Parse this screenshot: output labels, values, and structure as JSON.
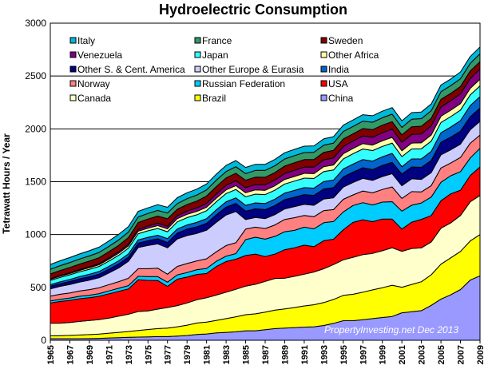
{
  "chart_data": {
    "type": "area",
    "title": "Hydroelectric Consumption",
    "ylabel": "Tetrawatt Hours / Year",
    "xlabel": "",
    "ylim": [
      0,
      3000
    ],
    "yticks": [
      "0",
      "500",
      "1000",
      "1500",
      "2000",
      "2500",
      "3000"
    ],
    "x": [
      1965,
      1966,
      1967,
      1968,
      1969,
      1970,
      1971,
      1972,
      1973,
      1974,
      1975,
      1976,
      1977,
      1978,
      1979,
      1980,
      1981,
      1982,
      1983,
      1984,
      1985,
      1986,
      1987,
      1988,
      1989,
      1990,
      1991,
      1992,
      1993,
      1994,
      1995,
      1996,
      1997,
      1998,
      1999,
      2000,
      2001,
      2002,
      2003,
      2004,
      2005,
      2006,
      2007,
      2008,
      2009
    ],
    "xticks": [
      "1965",
      "1967",
      "1969",
      "1971",
      "1973",
      "1975",
      "1977",
      "1979",
      "1981",
      "1983",
      "1985",
      "1987",
      "1989",
      "1991",
      "1993",
      "1995",
      "1997",
      "1999",
      "2001",
      "2003",
      "2005",
      "2007",
      "2009"
    ],
    "grid": true,
    "stacked": true,
    "annotation": "PropertyInvesting.net  Dec 2013",
    "series": [
      {
        "name": "China",
        "color": "#9999ff",
        "values": [
          15,
          15,
          15,
          15,
          16,
          18,
          22,
          25,
          28,
          30,
          32,
          35,
          35,
          40,
          45,
          55,
          60,
          70,
          75,
          80,
          90,
          90,
          100,
          110,
          115,
          120,
          125,
          128,
          140,
          160,
          185,
          185,
          195,
          205,
          215,
          225,
          260,
          270,
          280,
          330,
          390,
          430,
          480,
          570,
          610
        ]
      },
      {
        "name": "Brazil",
        "color": "#ffff00",
        "values": [
          27,
          29,
          31,
          35,
          38,
          40,
          45,
          50,
          55,
          62,
          70,
          75,
          80,
          88,
          98,
          108,
          112,
          118,
          130,
          142,
          152,
          160,
          167,
          175,
          182,
          190,
          200,
          208,
          217,
          226,
          240,
          250,
          260,
          272,
          282,
          296,
          242,
          258,
          274,
          290,
          330,
          350,
          360,
          370,
          390
        ]
      },
      {
        "name": "Canada",
        "color": "#ffffcc",
        "values": [
          120,
          118,
          122,
          128,
          133,
          138,
          143,
          153,
          163,
          180,
          175,
          185,
          195,
          200,
          210,
          220,
          230,
          240,
          250,
          260,
          270,
          280,
          290,
          300,
          290,
          295,
          300,
          310,
          320,
          330,
          336,
          350,
          355,
          345,
          350,
          355,
          340,
          340,
          320,
          310,
          340,
          330,
          340,
          370,
          370
        ]
      },
      {
        "name": "USA",
        "color": "#ff0000",
        "values": [
          190,
          205,
          210,
          215,
          215,
          220,
          230,
          235,
          240,
          300,
          290,
          270,
          200,
          250,
          245,
          240,
          230,
          270,
          290,
          285,
          290,
          285,
          235,
          230,
          270,
          270,
          275,
          240,
          265,
          240,
          285,
          330,
          330,
          300,
          300,
          270,
          210,
          250,
          270,
          250,
          260,
          275,
          240,
          250,
          270
        ]
      },
      {
        "name": "Russian Federation",
        "color": "#00ccff",
        "values": [
          20,
          21,
          22,
          23,
          24,
          25,
          27,
          29,
          31,
          33,
          35,
          37,
          39,
          41,
          43,
          45,
          47,
          49,
          51,
          53,
          150,
          160,
          165,
          168,
          170,
          165,
          170,
          168,
          170,
          168,
          168,
          160,
          162,
          158,
          160,
          165,
          170,
          160,
          155,
          175,
          175,
          172,
          175,
          165,
          176
        ]
      },
      {
        "name": "Norway",
        "color": "#ff8080",
        "values": [
          45,
          47,
          48,
          50,
          53,
          56,
          60,
          63,
          70,
          72,
          75,
          80,
          76,
          80,
          85,
          83,
          92,
          90,
          100,
          103,
          100,
          95,
          100,
          108,
          116,
          120,
          110,
          115,
          115,
          112,
          120,
          100,
          110,
          115,
          120,
          140,
          120,
          128,
          105,
          108,
          135,
          120,
          135,
          140,
          125
        ]
      },
      {
        "name": "Other Europe & Eurasia",
        "color": "#ccccff",
        "values": [
          70,
          75,
          80,
          85,
          90,
          95,
          110,
          130,
          160,
          200,
          220,
          230,
          250,
          260,
          265,
          260,
          270,
          280,
          290,
          295,
          90,
          92,
          95,
          98,
          100,
          104,
          106,
          108,
          110,
          112,
          115,
          118,
          120,
          118,
          122,
          125,
          120,
          122,
          118,
          123,
          125,
          125,
          126,
          127,
          130
        ]
      },
      {
        "name": "Other S. & Cent. America",
        "color": "#000080",
        "values": [
          25,
          26,
          28,
          30,
          32,
          34,
          36,
          38,
          40,
          42,
          45,
          48,
          50,
          55,
          60,
          62,
          65,
          70,
          74,
          77,
          80,
          82,
          84,
          86,
          88,
          90,
          92,
          94,
          95,
          96,
          97,
          98,
          100,
          102,
          105,
          108,
          110,
          112,
          114,
          116,
          118,
          120,
          122,
          124,
          126
        ]
      },
      {
        "name": "India",
        "color": "#0066cc",
        "values": [
          15,
          17,
          20,
          22,
          24,
          25,
          27,
          29,
          30,
          31,
          32,
          34,
          37,
          39,
          40,
          42,
          45,
          48,
          50,
          52,
          54,
          56,
          58,
          60,
          62,
          64,
          66,
          68,
          70,
          72,
          74,
          76,
          78,
          80,
          82,
          84,
          70,
          75,
          80,
          85,
          90,
          95,
          100,
          105,
          108
        ]
      },
      {
        "name": "Japan",
        "color": "#33ffff",
        "values": [
          40,
          42,
          44,
          45,
          47,
          48,
          50,
          52,
          55,
          58,
          62,
          64,
          65,
          68,
          70,
          72,
          75,
          76,
          78,
          80,
          82,
          83,
          84,
          85,
          86,
          88,
          90,
          92,
          94,
          95,
          96,
          98,
          100,
          100,
          98,
          98,
          96,
          95,
          96,
          97,
          98,
          99,
          100,
          101,
          102
        ]
      },
      {
        "name": "Other Africa",
        "color": "#ffffaa",
        "values": [
          10,
          11,
          12,
          13,
          14,
          16,
          18,
          20,
          22,
          24,
          25,
          27,
          28,
          30,
          31,
          32,
          33,
          34,
          35,
          37,
          38,
          40,
          41,
          42,
          43,
          44,
          45,
          46,
          47,
          48,
          49,
          50,
          51,
          52,
          53,
          54,
          55,
          56,
          57,
          58,
          59,
          60,
          61,
          62,
          63
        ]
      },
      {
        "name": "Venezuela",
        "color": "#800080",
        "values": [
          5,
          6,
          7,
          8,
          9,
          10,
          12,
          14,
          16,
          18,
          20,
          22,
          25,
          28,
          30,
          33,
          36,
          40,
          43,
          46,
          48,
          50,
          52,
          54,
          56,
          58,
          60,
          62,
          64,
          66,
          68,
          70,
          72,
          74,
          76,
          78,
          80,
          82,
          84,
          86,
          88,
          90,
          92,
          94,
          96
        ]
      },
      {
        "name": "Sweden",
        "color": "#800000",
        "values": [
          45,
          48,
          50,
          52,
          54,
          56,
          58,
          60,
          62,
          64,
          66,
          68,
          70,
          60,
          62,
          65,
          70,
          70,
          70,
          70,
          70,
          70,
          71,
          70,
          71,
          72,
          70,
          72,
          71,
          72,
          72,
          68,
          70,
          72,
          72,
          70,
          70,
          72,
          72,
          72,
          72,
          70,
          70,
          70,
          70
        ]
      },
      {
        "name": "France",
        "color": "#339966",
        "values": [
          45,
          46,
          47,
          48,
          49,
          50,
          51,
          52,
          52,
          53,
          53,
          54,
          54,
          55,
          56,
          57,
          58,
          60,
          61,
          62,
          63,
          64,
          65,
          66,
          66,
          67,
          67,
          68,
          68,
          69,
          70,
          70,
          70,
          70,
          70,
          71,
          71,
          72,
          72,
          72,
          72,
          73,
          73,
          73,
          74
        ]
      },
      {
        "name": "Italy",
        "color": "#00b8d8",
        "values": [
          45,
          46,
          47,
          48,
          49,
          50,
          51,
          52,
          52,
          53,
          53,
          54,
          54,
          55,
          56,
          56,
          56,
          57,
          57,
          58,
          58,
          58,
          58,
          59,
          59,
          59,
          60,
          60,
          60,
          60,
          60,
          61,
          61,
          61,
          62,
          62,
          62,
          62,
          63,
          63,
          63,
          63,
          64,
          64,
          65
        ]
      }
    ],
    "legend_order": [
      "Italy",
      "France",
      "Sweden",
      "Venezuela",
      "Japan",
      "Other Africa",
      "Other S. & Cent. America",
      "Other Europe & Eurasia",
      "India",
      "Norway",
      "Russian Federation",
      "USA",
      "Canada",
      "Brazil",
      "China"
    ]
  }
}
